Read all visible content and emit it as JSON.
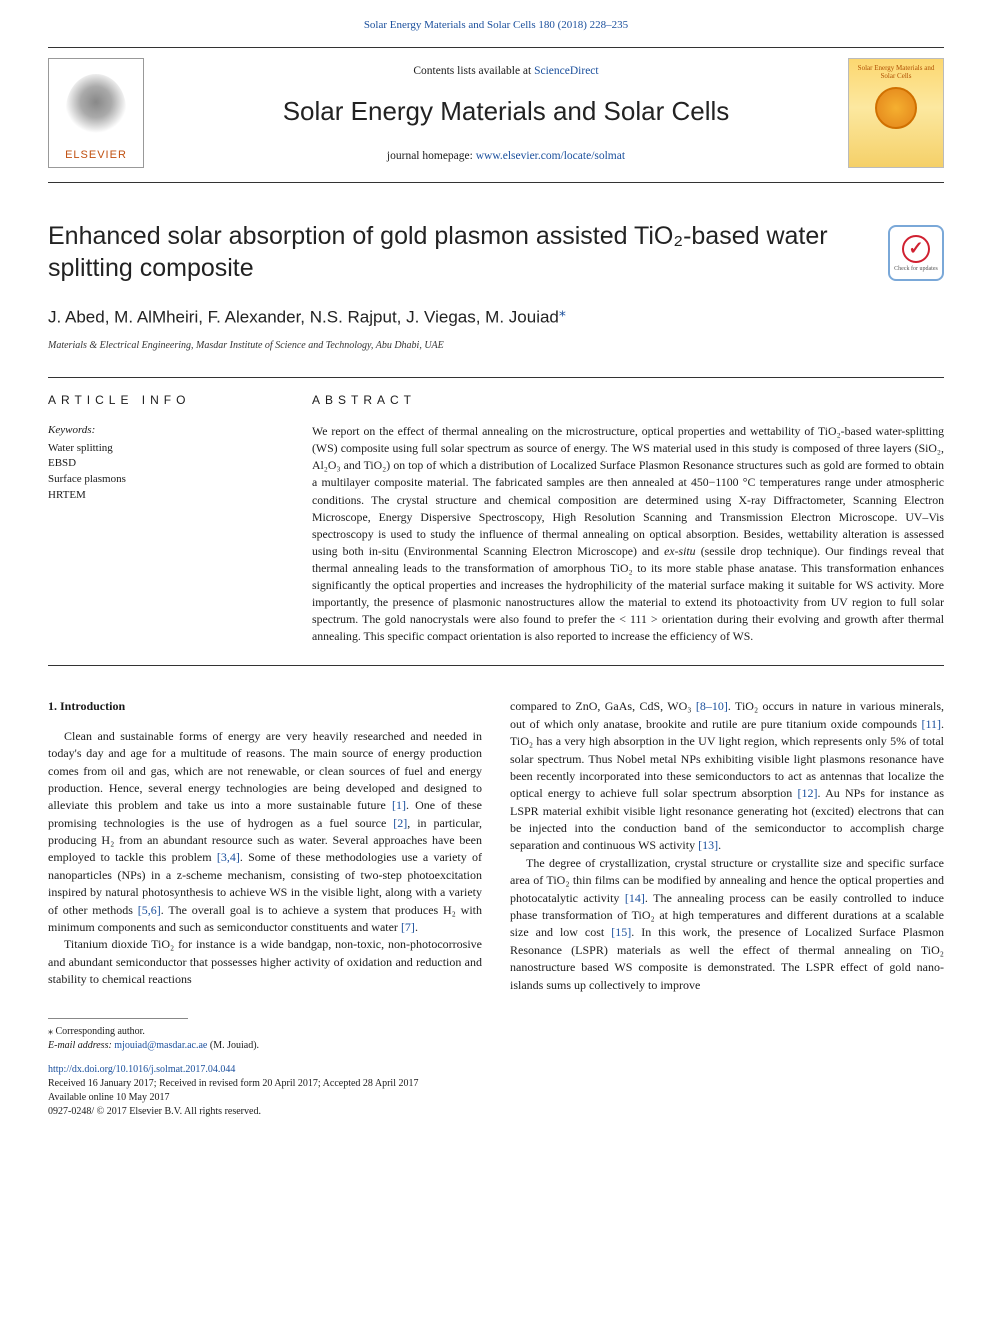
{
  "top_link": {
    "journal_citation": "Solar Energy Materials and Solar Cells 180 (2018) 228–235"
  },
  "header": {
    "contents_prefix": "Contents lists available at ",
    "contents_link": "ScienceDirect",
    "journal_name": "Solar Energy Materials and Solar Cells",
    "homepage_prefix": "journal homepage: ",
    "homepage_url": "www.elsevier.com/locate/solmat",
    "elsevier_label": "ELSEVIER",
    "cover_label": "Solar Energy Materials and Solar Cells"
  },
  "check_badge": {
    "mark": "✓",
    "text": "Check for updates"
  },
  "article": {
    "title": "Enhanced solar absorption of gold plasmon assisted TiO₂-based water splitting composite",
    "authors": "J. Abed, M. AlMheiri, F. Alexander, N.S. Rajput, J. Viegas, M. Jouiad",
    "corr_marker": "⁎",
    "affiliation": "Materials & Electrical Engineering, Masdar Institute of Science and Technology, Abu Dhabi, UAE"
  },
  "info": {
    "heading": "ARTICLE INFO",
    "keywords_label": "Keywords:",
    "keywords": "Water splitting\nEBSD\nSurface plasmons\nHRTEM"
  },
  "abstract": {
    "heading": "ABSTRACT",
    "text": "We report on the effect of thermal annealing on the microstructure, optical properties and wettability of TiO₂-based water-splitting (WS) composite using full solar spectrum as source of energy. The WS material used in this study is composed of three layers (SiO₂, Al₂O₃ and TiO₂) on top of which a distribution of Localized Surface Plasmon Resonance structures such as gold are formed to obtain a multilayer composite material. The fabricated samples are then annealed at 450−1100 °C temperatures range under atmospheric conditions. The crystal structure and chemical composition are determined using X-ray Diffractometer, Scanning Electron Microscope, Energy Dispersive Spectroscopy, High Resolution Scanning and Transmission Electron Microscope. UV–Vis spectroscopy is used to study the influence of thermal annealing on optical absorption. Besides, wettability alteration is assessed using both in-situ (Environmental Scanning Electron Microscope) and ex-situ (sessile drop technique). Our findings reveal that thermal annealing leads to the transformation of amorphous TiO₂ to its more stable phase anatase. This transformation enhances significantly the optical properties and increases the hydrophilicity of the material surface making it suitable for WS activity. More importantly, the presence of plasmonic nanostructures allow the material to extend its photoactivity from UV region to full solar spectrum. The gold nanocrystals were also found to prefer the < 111 > orientation during their evolving and growth after thermal annealing. This specific compact orientation is also reported to increase the efficiency of WS."
  },
  "intro": {
    "heading": "1. Introduction",
    "para1": "Clean and sustainable forms of energy are very heavily researched and needed in today's day and age for a multitude of reasons. The main source of energy production comes from oil and gas, which are not renewable, or clean sources of fuel and energy production. Hence, several energy technologies are being developed and designed to alleviate this problem and take us into a more sustainable future [1]. One of these promising technologies is the use of hydrogen as a fuel source [2], in particular, producing H₂ from an abundant resource such as water. Several approaches have been employed to tackle this problem [3,4]. Some of these methodologies use a variety of nanoparticles (NPs) in a z-scheme mechanism, consisting of two-step photoexcitation inspired by natural photosynthesis to achieve WS in the visible light, along with a variety of other methods [5,6]. The overall goal is to achieve a system that produces H₂ with minimum components and such as semiconductor constituents and water [7].",
    "para2": "Titanium dioxide TiO₂ for instance is a wide bandgap, non-toxic, non-photocorrosive and abundant semiconductor that possesses higher activity of oxidation and reduction and stability to chemical reactions",
    "para3": "compared to ZnO, GaAs, CdS, WO₃ [8–10]. TiO₂ occurs in nature in various minerals, out of which only anatase, brookite and rutile are pure titanium oxide compounds [11]. TiO₂ has a very high absorption in the UV light region, which represents only 5% of total solar spectrum. Thus Nobel metal NPs exhibiting visible light plasmons resonance have been recently incorporated into these semiconductors to act as antennas that localize the optical energy to achieve full solar spectrum absorption [12]. Au NPs for instance as LSPR material exhibit visible light resonance generating hot (excited) electrons that can be injected into the conduction band of the semiconductor to accomplish charge separation and continuous WS activity [13].",
    "para4": "The degree of crystallization, crystal structure or crystallite size and specific surface area of TiO₂ thin films can be modified by annealing and hence the optical properties and photocatalytic activity [14]. The annealing process can be easily controlled to induce phase transformation of TiO₂ at high temperatures and different durations at a scalable size and low cost [15]. In this work, the presence of Localized Surface Plasmon Resonance (LSPR) materials as well the effect of thermal annealing on TiO₂ nanostructure based WS composite is demonstrated. The LSPR effect of gold nano-islands sums up collectively to improve"
  },
  "footer": {
    "corr_label": "⁎ Corresponding author.",
    "email_label": "E-mail address: ",
    "email": "mjouiad@masdar.ac.ae",
    "email_suffix": " (M. Jouiad).",
    "doi": "http://dx.doi.org/10.1016/j.solmat.2017.04.044",
    "received": "Received 16 January 2017; Received in revised form 20 April 2017; Accepted 28 April 2017",
    "available": "Available online 10 May 2017",
    "copyright": "0927-0248/ © 2017 Elsevier B.V. All rights reserved."
  },
  "refs": {
    "r1": "[1]",
    "r2": "[2]",
    "r34": "[3,4]",
    "r56": "[5,6]",
    "r7": "[7]",
    "r810": "[8–10]",
    "r11": "[11]",
    "r12": "[12]",
    "r13": "[13]",
    "r14": "[14]",
    "r15": "[15]"
  }
}
